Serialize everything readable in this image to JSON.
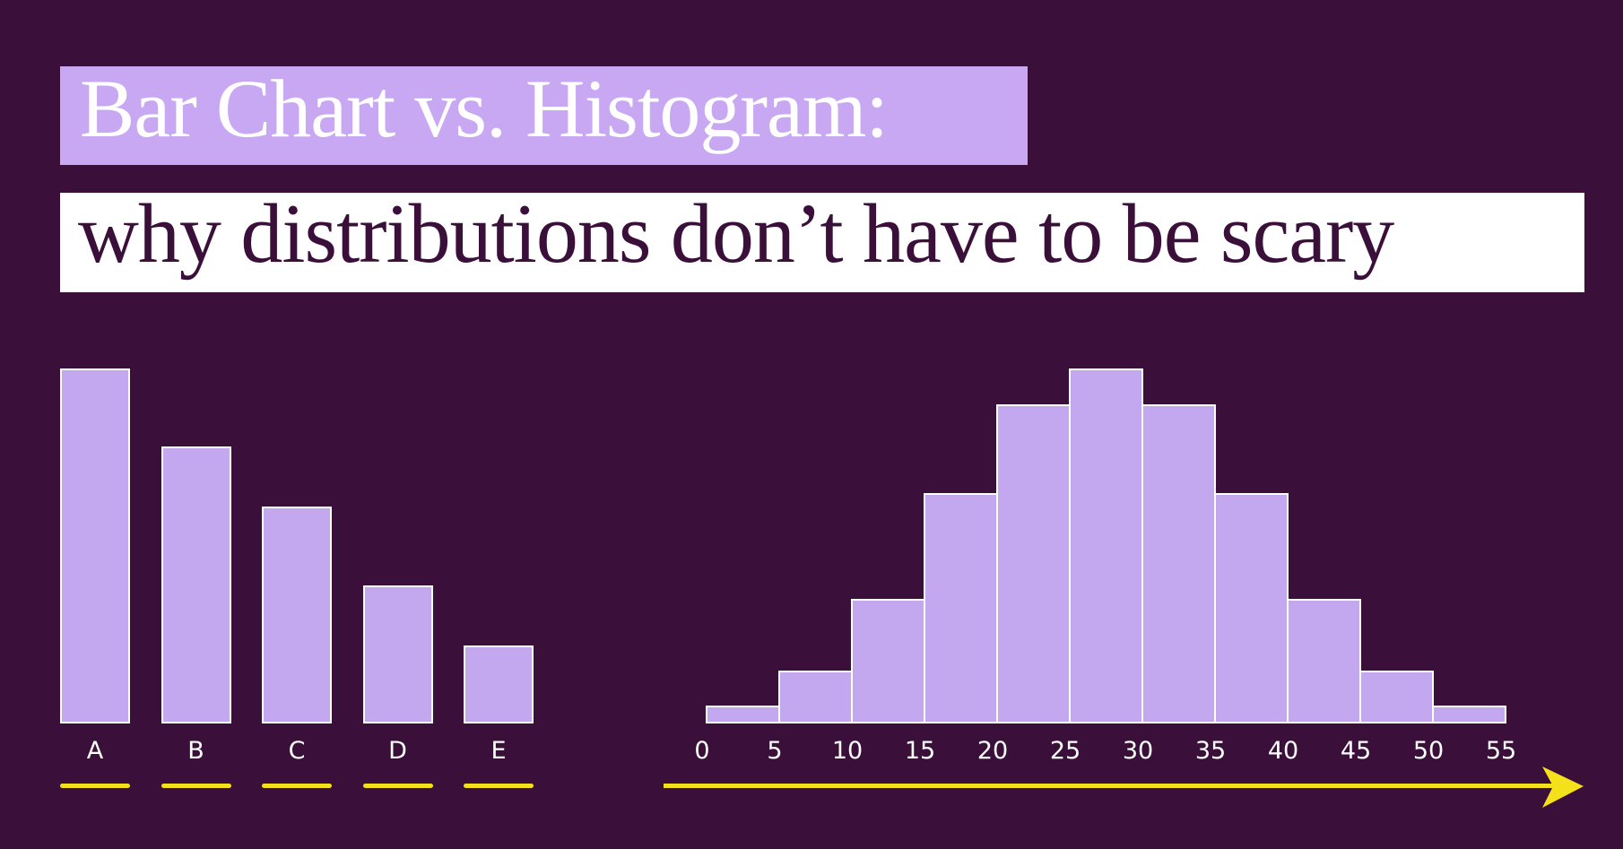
{
  "title": "Bar Chart vs. Histogram:",
  "subtitle": "why distributions don’t have to be scary",
  "colors": {
    "background": "#3a0f3a",
    "title_box": "#c9a8f3",
    "bar_fill": "#c3a8ef",
    "bar_stroke": "#ffffff",
    "accent": "#f5e11b"
  },
  "chart_data": [
    {
      "type": "bar",
      "title": "Bar Chart",
      "categories": [
        "A",
        "B",
        "C",
        "D",
        "E"
      ],
      "values": [
        100,
        78,
        61,
        39,
        22
      ],
      "xlabel": "",
      "ylabel": "",
      "grid": false
    },
    {
      "type": "bar",
      "title": "Histogram",
      "bin_edges": [
        0,
        5,
        10,
        15,
        20,
        25,
        30,
        35,
        40,
        45,
        50,
        55
      ],
      "x_ticks": [
        "0",
        "5",
        "10",
        "15",
        "20",
        "25",
        "30",
        "35",
        "40",
        "45",
        "50",
        "55"
      ],
      "values": [
        5,
        15,
        35,
        65,
        90,
        100,
        90,
        65,
        35,
        15,
        5
      ],
      "xlabel": "",
      "ylabel": "",
      "grid": false,
      "axis_arrow": true
    }
  ]
}
